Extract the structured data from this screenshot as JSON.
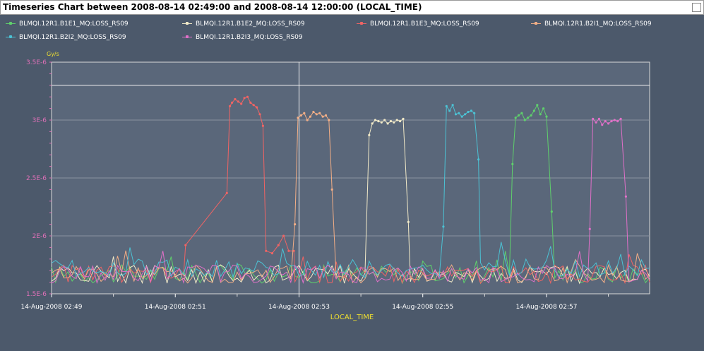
{
  "window": {
    "title": "Timeseries Chart between 2008-08-14 02:49:00 and 2008-08-14 12:00:00 (LOCAL_TIME)"
  },
  "legend": [
    {
      "name": "BLMQI.12R1.B1E1_MQ:LOSS_RS09",
      "color": "#5fd06c"
    },
    {
      "name": "BLMQI.12R1.B1E2_MQ:LOSS_RS09",
      "color": "#f2eac8"
    },
    {
      "name": "BLMQI.12R1.B1E3_MQ:LOSS_RS09",
      "color": "#f06464"
    },
    {
      "name": "BLMQI.12R1.B2I1_MQ:LOSS_RS09",
      "color": "#f2ae86"
    },
    {
      "name": "BLMQI.12R1.B2I2_MQ:LOSS_RS09",
      "color": "#4cc2d4"
    },
    {
      "name": "BLMQI.12R1.B2I3_MQ:LOSS_RS09",
      "color": "#e070c8"
    }
  ],
  "chart_data": {
    "type": "line",
    "xlabel": "LOCAL_TIME",
    "ylabel": "Gy/s",
    "xlim": [
      "14-Aug-2008 02:49:00",
      "14-Aug-2008 02:58:40"
    ],
    "ylim": [
      1.5e-06,
      3.5e-06
    ],
    "x_ticks": [
      "14-Aug-2008 02:49",
      "14-Aug-2008 02:51",
      "14-Aug-2008 02:53",
      "14-Aug-2008 02:55",
      "14-Aug-2008 02:57"
    ],
    "y_ticks": [
      "1.5E-6",
      "2E-6",
      "2.5E-6",
      "3E-6",
      "3.5E-6"
    ],
    "threshold_line": 3.3e-06,
    "cursor_time": "14-Aug-2008 02:53:00",
    "grid": true,
    "baseline_level": 1.67e-06,
    "series": [
      {
        "name": "BLMQI.12R1.B1E3_MQ:LOSS_RS09",
        "points": [
          [
            "02:51:10",
            1.92e-06
          ],
          [
            "02:51:50",
            2.37e-06
          ],
          [
            "02:51:53",
            3.12e-06
          ],
          [
            "02:51:55",
            3.15e-06
          ],
          [
            "02:51:58",
            3.18e-06
          ],
          [
            "02:52:01",
            3.16e-06
          ],
          [
            "02:52:04",
            3.14e-06
          ],
          [
            "02:52:07",
            3.19e-06
          ],
          [
            "02:52:10",
            3.2e-06
          ],
          [
            "02:52:13",
            3.15e-06
          ],
          [
            "02:52:16",
            3.13e-06
          ],
          [
            "02:52:19",
            3.11e-06
          ],
          [
            "02:52:22",
            3.05e-06
          ],
          [
            "02:52:25",
            2.95e-06
          ],
          [
            "02:52:28",
            1.87e-06
          ],
          [
            "02:52:34",
            1.85e-06
          ],
          [
            "02:52:40",
            1.92e-06
          ],
          [
            "02:52:45",
            2e-06
          ],
          [
            "02:52:50",
            1.87e-06
          ],
          [
            "02:52:55",
            1.87e-06
          ]
        ]
      },
      {
        "name": "BLMQI.12R1.B2I1_MQ:LOSS_RS09",
        "points": [
          [
            "02:52:56",
            2.1e-06
          ],
          [
            "02:52:59",
            3.02e-06
          ],
          [
            "02:53:02",
            3.04e-06
          ],
          [
            "02:53:05",
            3.06e-06
          ],
          [
            "02:53:08",
            3e-06
          ],
          [
            "02:53:11",
            3.03e-06
          ],
          [
            "02:53:14",
            3.07e-06
          ],
          [
            "02:53:17",
            3.05e-06
          ],
          [
            "02:53:20",
            3.06e-06
          ],
          [
            "02:53:23",
            3.03e-06
          ],
          [
            "02:53:26",
            3.04e-06
          ],
          [
            "02:53:29",
            3e-06
          ],
          [
            "02:53:32",
            2.4e-06
          ]
        ]
      },
      {
        "name": "BLMQI.12R1.B1E2_MQ:LOSS_RS09",
        "points": [
          [
            "02:54:08",
            2.87e-06
          ],
          [
            "02:54:11",
            2.97e-06
          ],
          [
            "02:54:14",
            3e-06
          ],
          [
            "02:54:17",
            2.99e-06
          ],
          [
            "02:54:20",
            2.98e-06
          ],
          [
            "02:54:23",
            3e-06
          ],
          [
            "02:54:26",
            2.97e-06
          ],
          [
            "02:54:29",
            2.99e-06
          ],
          [
            "02:54:32",
            2.98e-06
          ],
          [
            "02:54:35",
            3e-06
          ],
          [
            "02:54:38",
            2.99e-06
          ],
          [
            "02:54:41",
            3.01e-06
          ],
          [
            "02:54:46",
            2.12e-06
          ]
        ]
      },
      {
        "name": "BLMQI.12R1.B2I2_MQ:LOSS_RS09",
        "points": [
          [
            "02:55:20",
            2.08e-06
          ],
          [
            "02:55:23",
            3.12e-06
          ],
          [
            "02:55:26",
            3.08e-06
          ],
          [
            "02:55:29",
            3.13e-06
          ],
          [
            "02:55:32",
            3.05e-06
          ],
          [
            "02:55:35",
            3.06e-06
          ],
          [
            "02:55:38",
            3.03e-06
          ],
          [
            "02:55:41",
            3.05e-06
          ],
          [
            "02:55:44",
            3.07e-06
          ],
          [
            "02:55:47",
            3.08e-06
          ],
          [
            "02:55:50",
            3.06e-06
          ],
          [
            "02:55:54",
            2.66e-06
          ]
        ]
      },
      {
        "name": "BLMQI.12R1.B1E1_MQ:LOSS_RS09",
        "points": [
          [
            "02:56:27",
            2.62e-06
          ],
          [
            "02:56:30",
            3.02e-06
          ],
          [
            "02:56:33",
            3.04e-06
          ],
          [
            "02:56:36",
            3.06e-06
          ],
          [
            "02:56:39",
            3e-06
          ],
          [
            "02:56:42",
            3.02e-06
          ],
          [
            "02:56:45",
            3.04e-06
          ],
          [
            "02:56:48",
            3.08e-06
          ],
          [
            "02:56:51",
            3.13e-06
          ],
          [
            "02:56:54",
            3.05e-06
          ],
          [
            "02:56:57",
            3.1e-06
          ],
          [
            "02:57:00",
            3.03e-06
          ],
          [
            "02:57:05",
            2.21e-06
          ]
        ]
      },
      {
        "name": "BLMQI.12R1.B2I3_MQ:LOSS_RS09",
        "points": [
          [
            "02:57:42",
            2.06e-06
          ],
          [
            "02:57:45",
            3.01e-06
          ],
          [
            "02:57:48",
            2.98e-06
          ],
          [
            "02:57:51",
            3.01e-06
          ],
          [
            "02:57:54",
            2.96e-06
          ],
          [
            "02:57:57",
            2.99e-06
          ],
          [
            "02:58:00",
            2.97e-06
          ],
          [
            "02:58:03",
            2.99e-06
          ],
          [
            "02:58:06",
            3e-06
          ],
          [
            "02:58:09",
            2.99e-06
          ],
          [
            "02:58:12",
            3.01e-06
          ],
          [
            "02:58:17",
            2.34e-06
          ]
        ]
      }
    ]
  }
}
